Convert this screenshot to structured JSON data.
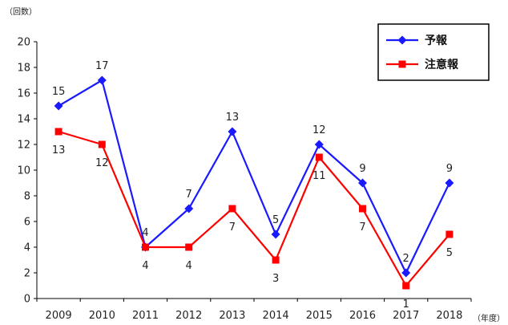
{
  "chart_data": {
    "type": "line",
    "y_unit_label": "（回数）",
    "x_unit_label": "（年度）",
    "categories": [
      "2009",
      "2010",
      "2011",
      "2012",
      "2013",
      "2014",
      "2015",
      "2016",
      "2017",
      "2018"
    ],
    "ylim": [
      0,
      20
    ],
    "yticks": [
      "0",
      "2",
      "4",
      "6",
      "8",
      "10",
      "12",
      "14",
      "16",
      "18",
      "20"
    ],
    "grid": false,
    "legend_position": "top-right",
    "series": [
      {
        "name": "予報",
        "color": "#1a1aff",
        "marker": "diamond",
        "values": [
          15,
          17,
          4,
          7,
          13,
          5,
          12,
          9,
          2,
          9
        ]
      },
      {
        "name": "注意報",
        "color": "#ff0000",
        "marker": "square",
        "values": [
          13,
          12,
          4,
          4,
          7,
          3,
          11,
          7,
          1,
          5
        ]
      }
    ],
    "data_labels": [
      [
        "15",
        "17",
        "4",
        "7",
        "13",
        "5",
        "12",
        "9",
        "2",
        "9"
      ],
      [
        "13",
        "12",
        "4",
        "4",
        "7",
        "3",
        "11",
        "7",
        "1",
        "5"
      ]
    ]
  }
}
